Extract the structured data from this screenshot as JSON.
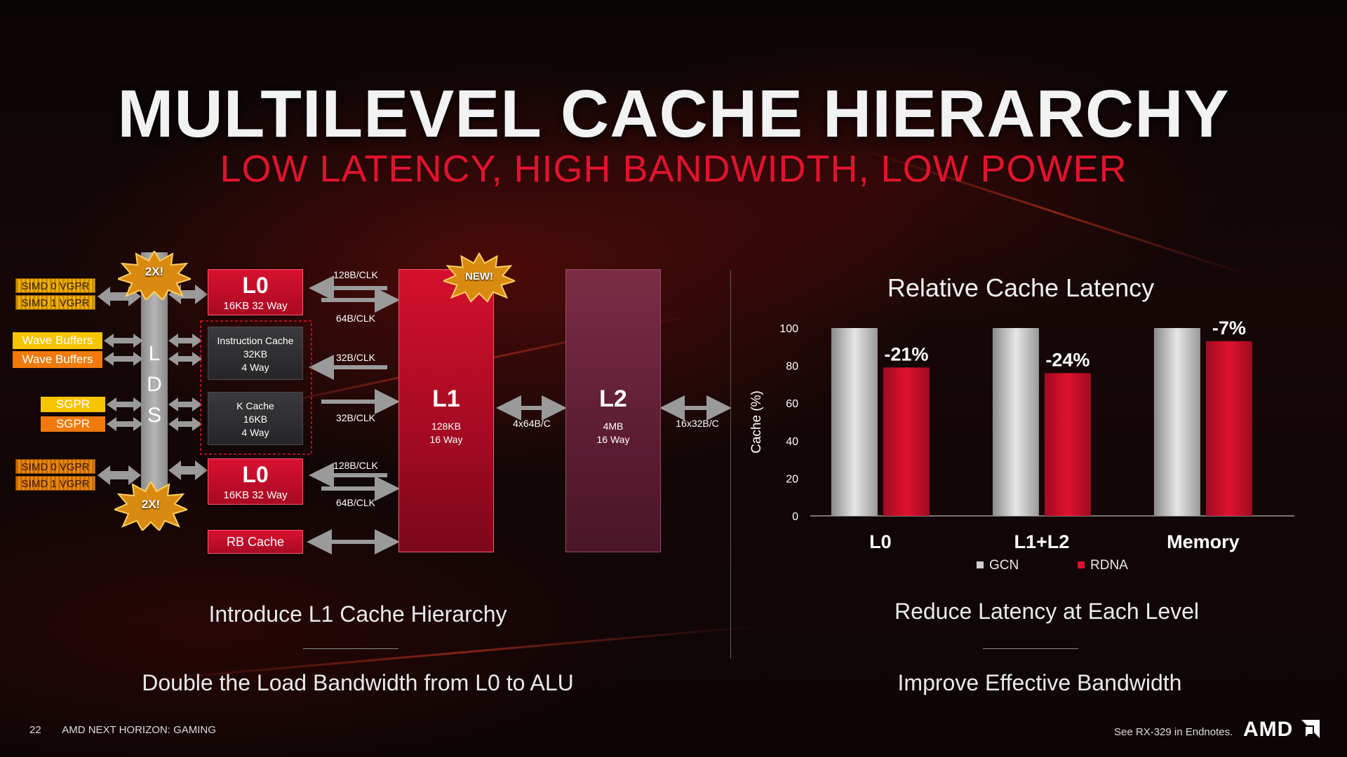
{
  "slide": {
    "title": "MULTILEVEL CACHE HIERARCHY",
    "subtitle": "LOW LATENCY, HIGH BANDWIDTH, LOW POWER",
    "page_number": "22",
    "footer_label": "AMD NEXT HORIZON: GAMING",
    "endnote": "See RX-329 in Endnotes.",
    "logo": "AMD",
    "accent_color": "#e0132e"
  },
  "diagram": {
    "inputs": {
      "simd0_vgpr_top": "SIMD 0 VGPR",
      "simd1_vgpr_top": "SIMD 1 VGPR",
      "wave_buffers_1": "Wave Buffers",
      "wave_buffers_2": "Wave Buffers",
      "sgpr_1": "SGPR",
      "sgpr_2": "SGPR",
      "simd0_vgpr_bottom": "SIMD 0 VGPR",
      "simd1_vgpr_bottom": "SIMD 1 VGPR"
    },
    "lds_letters": [
      "L",
      "D",
      "S"
    ],
    "burst_top": "2X!",
    "burst_bottom": "2X!",
    "burst_new": "NEW!",
    "l0_top": {
      "name": "L0",
      "spec": "16KB 32 Way"
    },
    "instruction_cache": {
      "name": "Instruction Cache",
      "size": "32KB",
      "ways": "4 Way"
    },
    "k_cache": {
      "name": "K Cache",
      "size": "16KB",
      "ways": "4 Way"
    },
    "l0_bottom": {
      "name": "L0",
      "spec": "16KB 32 Way"
    },
    "rb_cache": "RB Cache",
    "bandwidth": {
      "l0_top_in": "128B/CLK",
      "l0_top_out": "64B/CLK",
      "icache": "32B/CLK",
      "kcache": "32B/CLK",
      "l0_bottom_in": "128B/CLK",
      "l0_bottom_out": "64B/CLK",
      "l1_l2": "4x64B/C",
      "l2_mem": "16x32B/C"
    },
    "l1": {
      "name": "L1",
      "size": "128KB",
      "ways": "16 Way"
    },
    "l2": {
      "name": "L2",
      "size": "4MB",
      "ways": "16 Way"
    }
  },
  "captions": {
    "left_1": "Introduce L1 Cache Hierarchy",
    "left_2": "Double the Load Bandwidth from L0 to ALU",
    "right_1": "Reduce Latency at Each Level",
    "right_2": "Improve Effective Bandwidth"
  },
  "chart_data": {
    "type": "bar",
    "title": "Relative Cache Latency",
    "ylabel": "Cache (%)",
    "ylim": [
      0,
      100
    ],
    "yticks": [
      0,
      20,
      40,
      60,
      80,
      100
    ],
    "categories": [
      "L0",
      "L1+L2",
      "Memory"
    ],
    "series": [
      {
        "name": "GCN",
        "values": [
          100,
          100,
          100
        ],
        "color": "#cfcfcf"
      },
      {
        "name": "RDNA",
        "values": [
          79,
          76,
          93
        ],
        "color": "#d8112f"
      }
    ],
    "data_labels": [
      "-21%",
      "-24%",
      "-7%"
    ],
    "legend_position": "bottom"
  }
}
